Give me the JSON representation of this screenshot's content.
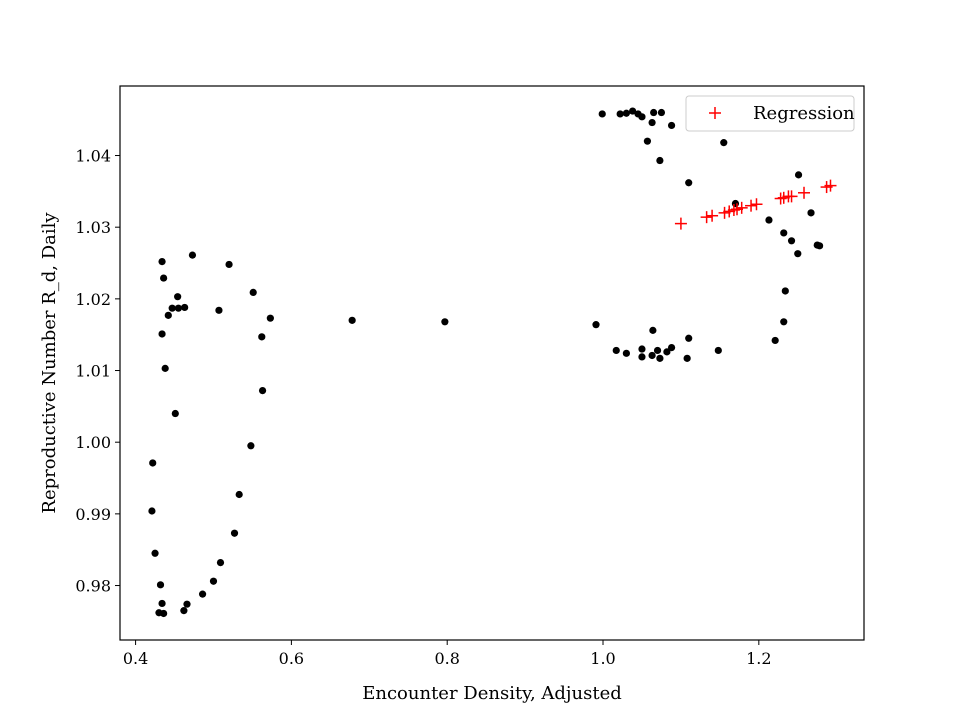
{
  "chart_data": {
    "type": "scatter",
    "title": "",
    "xlabel": "Encounter Density, Adjusted",
    "ylabel": "Reproductive Number R_d, Daily",
    "xlim": [
      0.38,
      1.335
    ],
    "ylim": [
      0.9724,
      1.0497
    ],
    "xticks": [
      0.4,
      0.6,
      0.8,
      1.0,
      1.2
    ],
    "xtick_labels": [
      "0.4",
      "0.6",
      "0.8",
      "1.0",
      "1.2"
    ],
    "yticks": [
      0.98,
      0.99,
      1.0,
      1.01,
      1.02,
      1.03,
      1.04
    ],
    "ytick_labels": [
      "0.98",
      "0.99",
      "1.00",
      "1.01",
      "1.02",
      "1.03",
      "1.04"
    ],
    "grid": false,
    "legend": {
      "placement": "top-right",
      "entries": [
        "Regression"
      ]
    },
    "series": [
      {
        "marker": "dot",
        "color": "#000000",
        "points": [
          [
            0.422,
            0.9971
          ],
          [
            0.421,
            0.9904
          ],
          [
            0.425,
            0.9845
          ],
          [
            0.432,
            0.9801
          ],
          [
            0.434,
            0.9775
          ],
          [
            0.43,
            0.9762
          ],
          [
            0.436,
            0.9761
          ],
          [
            0.462,
            0.9765
          ],
          [
            0.466,
            0.9774
          ],
          [
            0.486,
            0.9788
          ],
          [
            0.5,
            0.9806
          ],
          [
            0.509,
            0.9832
          ],
          [
            0.527,
            0.9873
          ],
          [
            0.533,
            0.9927
          ],
          [
            0.548,
            0.9995
          ],
          [
            0.563,
            1.0072
          ],
          [
            0.562,
            1.0147
          ],
          [
            0.573,
            1.0173
          ],
          [
            0.551,
            1.0209
          ],
          [
            0.52,
            1.0248
          ],
          [
            0.507,
            1.0184
          ],
          [
            0.473,
            1.0261
          ],
          [
            0.463,
            1.0188
          ],
          [
            0.455,
            1.0187
          ],
          [
            0.454,
            1.0203
          ],
          [
            0.447,
            1.0187
          ],
          [
            0.442,
            1.0177
          ],
          [
            0.434,
            1.0252
          ],
          [
            0.436,
            1.0229
          ],
          [
            0.434,
            1.0151
          ],
          [
            0.438,
            1.0103
          ],
          [
            0.451,
            1.004
          ],
          [
            0.678,
            1.017
          ],
          [
            0.797,
            1.0168
          ],
          [
            0.991,
            1.0164
          ],
          [
            1.017,
            1.0128
          ],
          [
            1.03,
            1.0124
          ],
          [
            1.05,
            1.013
          ],
          [
            1.05,
            1.0119
          ],
          [
            1.063,
            1.0121
          ],
          [
            1.07,
            1.0128
          ],
          [
            1.073,
            1.0117
          ],
          [
            1.082,
            1.0126
          ],
          [
            1.088,
            1.0132
          ],
          [
            1.064,
            1.0156
          ],
          [
            1.108,
            1.0117
          ],
          [
            1.11,
            1.0145
          ],
          [
            1.148,
            1.0128
          ],
          [
            0.999,
            1.0458
          ],
          [
            1.022,
            1.0458
          ],
          [
            1.03,
            1.0459
          ],
          [
            1.038,
            1.0462
          ],
          [
            1.045,
            1.0458
          ],
          [
            1.05,
            1.0454
          ],
          [
            1.065,
            1.046
          ],
          [
            1.075,
            1.046
          ],
          [
            1.063,
            1.0446
          ],
          [
            1.088,
            1.0442
          ],
          [
            1.057,
            1.042
          ],
          [
            1.073,
            1.0393
          ],
          [
            1.155,
            1.0418
          ],
          [
            1.11,
            1.0362
          ],
          [
            1.17,
            1.0333
          ],
          [
            1.213,
            1.031
          ],
          [
            1.232,
            1.0292
          ],
          [
            1.242,
            1.0281
          ],
          [
            1.25,
            1.0263
          ],
          [
            1.251,
            1.0373
          ],
          [
            1.267,
            1.032
          ],
          [
            1.275,
            1.0275
          ],
          [
            1.278,
            1.0274
          ],
          [
            1.232,
            1.0168
          ],
          [
            1.234,
            1.0211
          ],
          [
            1.221,
            1.0142
          ]
        ]
      },
      {
        "name": "Regression",
        "marker": "plus",
        "color": "#ff0000",
        "points": [
          [
            1.1,
            1.0305
          ],
          [
            1.133,
            1.0314
          ],
          [
            1.14,
            1.0316
          ],
          [
            1.156,
            1.032
          ],
          [
            1.162,
            1.0322
          ],
          [
            1.168,
            1.0324
          ],
          [
            1.172,
            1.0325
          ],
          [
            1.178,
            1.0327
          ],
          [
            1.19,
            1.033
          ],
          [
            1.197,
            1.0332
          ],
          [
            1.228,
            1.034
          ],
          [
            1.232,
            1.0341
          ],
          [
            1.238,
            1.0343
          ],
          [
            1.242,
            1.0343
          ],
          [
            1.258,
            1.0348
          ],
          [
            1.287,
            1.0356
          ],
          [
            1.292,
            1.0358
          ]
        ]
      }
    ]
  }
}
